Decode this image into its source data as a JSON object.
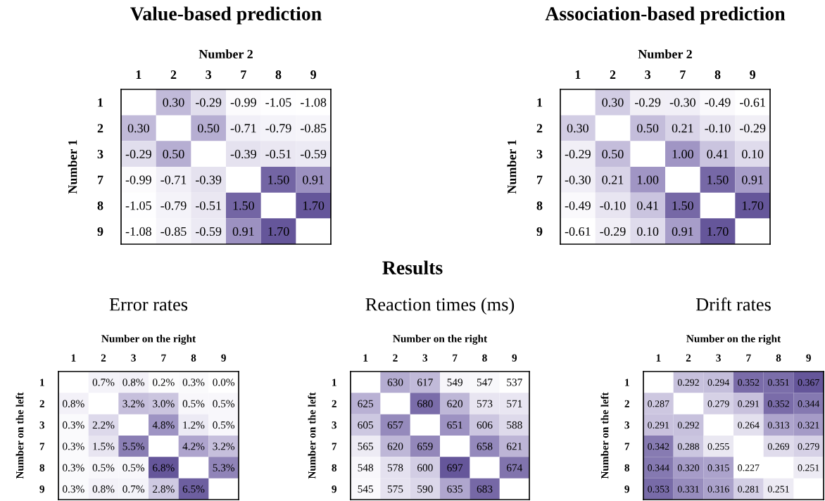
{
  "chart_data": [
    {
      "type": "heatmap",
      "title": "Value-based prediction",
      "xlabel": "Number 2",
      "ylabel": "Number 1",
      "categories": [
        "1",
        "2",
        "3",
        "7",
        "8",
        "9"
      ],
      "y_categories": [
        "1",
        "2",
        "3",
        "7",
        "8",
        "9"
      ],
      "cells": [
        [
          null,
          0.3,
          -0.29,
          -0.99,
          -1.05,
          -1.08
        ],
        [
          0.3,
          null,
          0.5,
          -0.71,
          -0.79,
          -0.85
        ],
        [
          -0.29,
          0.5,
          null,
          -0.39,
          -0.51,
          -0.59
        ],
        [
          -0.99,
          -0.71,
          -0.39,
          null,
          1.5,
          0.91
        ],
        [
          -1.05,
          -0.79,
          -0.51,
          1.5,
          null,
          1.7
        ],
        [
          -1.08,
          -0.85,
          -0.59,
          0.91,
          1.7,
          null
        ]
      ],
      "cell_labels": [
        [
          null,
          "0.30",
          "-0.29",
          "-0.99",
          "-1.05",
          "-1.08"
        ],
        [
          "0.30",
          null,
          "0.50",
          "-0.71",
          "-0.79",
          "-0.85"
        ],
        [
          "-0.29",
          "0.50",
          null,
          "-0.39",
          "-0.51",
          "-0.59"
        ],
        [
          "-0.99",
          "-0.71",
          "-0.39",
          null,
          "1.50",
          "0.91"
        ],
        [
          "-1.05",
          "-0.79",
          "-0.51",
          "1.50",
          null,
          "1.70"
        ],
        [
          "-1.08",
          "-0.85",
          "-0.59",
          "0.91",
          "1.70",
          null
        ]
      ]
    },
    {
      "type": "heatmap",
      "title": "Association-based prediction",
      "xlabel": "Number 2",
      "ylabel": "Number 1",
      "categories": [
        "1",
        "2",
        "3",
        "7",
        "8",
        "9"
      ],
      "y_categories": [
        "1",
        "2",
        "3",
        "7",
        "8",
        "9"
      ],
      "cells": [
        [
          null,
          0.3,
          -0.29,
          -0.3,
          -0.49,
          -0.61
        ],
        [
          0.3,
          null,
          0.5,
          0.21,
          -0.1,
          -0.29
        ],
        [
          -0.29,
          0.5,
          null,
          1.0,
          0.41,
          0.1
        ],
        [
          -0.3,
          0.21,
          1.0,
          null,
          1.5,
          0.91
        ],
        [
          -0.49,
          -0.1,
          0.41,
          1.5,
          null,
          1.7
        ],
        [
          -0.61,
          -0.29,
          0.1,
          0.91,
          1.7,
          null
        ]
      ],
      "cell_labels": [
        [
          null,
          "0.30",
          "-0.29",
          "-0.30",
          "-0.49",
          "-0.61"
        ],
        [
          "0.30",
          null,
          "0.50",
          "0.21",
          "-0.10",
          "-0.29"
        ],
        [
          "-0.29",
          "0.50",
          null,
          "1.00",
          "0.41",
          "0.10"
        ],
        [
          "-0.30",
          "0.21",
          "1.00",
          null,
          "1.50",
          "0.91"
        ],
        [
          "-0.49",
          "-0.10",
          "0.41",
          "1.50",
          null,
          "1.70"
        ],
        [
          "-0.61",
          "-0.29",
          "0.10",
          "0.91",
          "1.70",
          null
        ]
      ]
    },
    {
      "type": "heatmap",
      "title": "Error rates",
      "xlabel": "Number on the right",
      "ylabel": "Number on the left",
      "categories": [
        "1",
        "2",
        "3",
        "7",
        "8",
        "9"
      ],
      "y_categories": [
        "1",
        "2",
        "3",
        "7",
        "8",
        "9"
      ],
      "cells": [
        [
          null,
          0.7,
          0.8,
          0.2,
          0.3,
          0.0
        ],
        [
          0.8,
          null,
          3.2,
          3.0,
          0.5,
          0.5
        ],
        [
          0.3,
          2.2,
          null,
          4.8,
          1.2,
          0.5
        ],
        [
          0.3,
          1.5,
          5.5,
          null,
          4.2,
          3.2
        ],
        [
          0.3,
          0.5,
          0.5,
          6.8,
          null,
          5.3
        ],
        [
          0.3,
          0.8,
          0.7,
          2.8,
          6.5,
          null
        ]
      ],
      "cell_labels": [
        [
          null,
          "0.7%",
          "0.8%",
          "0.2%",
          "0.3%",
          "0.0%"
        ],
        [
          "0.8%",
          null,
          "3.2%",
          "3.0%",
          "0.5%",
          "0.5%"
        ],
        [
          "0.3%",
          "2.2%",
          null,
          "4.8%",
          "1.2%",
          "0.5%"
        ],
        [
          "0.3%",
          "1.5%",
          "5.5%",
          null,
          "4.2%",
          "3.2%"
        ],
        [
          "0.3%",
          "0.5%",
          "0.5%",
          "6.8%",
          null,
          "5.3%"
        ],
        [
          "0.3%",
          "0.8%",
          "0.7%",
          "2.8%",
          "6.5%",
          null
        ]
      ]
    },
    {
      "type": "heatmap",
      "title": "Reaction times (ms)",
      "xlabel": "Number on the right",
      "ylabel": "Number on the left",
      "annotations": [
        "Results"
      ],
      "categories": [
        "1",
        "2",
        "3",
        "7",
        "8",
        "9"
      ],
      "y_categories": [
        "1",
        "2",
        "3",
        "7",
        "8",
        "9"
      ],
      "cells": [
        [
          null,
          630,
          617,
          549,
          547,
          537
        ],
        [
          625,
          null,
          680,
          620,
          573,
          571
        ],
        [
          605,
          657,
          null,
          651,
          606,
          588
        ],
        [
          565,
          620,
          659,
          null,
          658,
          621
        ],
        [
          548,
          578,
          600,
          697,
          null,
          674
        ],
        [
          545,
          575,
          590,
          635,
          683,
          null
        ]
      ],
      "data_labels": true
    },
    {
      "type": "heatmap",
      "title": "Drift rates",
      "xlabel": "Number on the right",
      "ylabel": "Number on the left",
      "categories": [
        "1",
        "2",
        "3",
        "7",
        "8",
        "9"
      ],
      "y_categories": [
        "1",
        "2",
        "3",
        "7",
        "8",
        "9"
      ],
      "cells": [
        [
          null,
          0.292,
          0.294,
          0.352,
          0.351,
          0.367
        ],
        [
          0.287,
          null,
          0.279,
          0.291,
          0.352,
          0.344
        ],
        [
          0.291,
          0.292,
          null,
          0.264,
          0.313,
          0.321
        ],
        [
          0.342,
          0.288,
          0.255,
          null,
          0.269,
          0.279
        ],
        [
          0.344,
          0.32,
          0.315,
          0.227,
          null,
          0.251
        ],
        [
          0.353,
          0.331,
          0.316,
          0.281,
          0.251,
          null
        ]
      ],
      "cell_labels": [
        [
          null,
          "0.292",
          "0.294",
          "0.352",
          "0.351",
          "0.367"
        ],
        [
          "0.287",
          null,
          "0.279",
          "0.291",
          "0.352",
          "0.344"
        ],
        [
          "0.291",
          "0.292",
          null,
          "0.264",
          "0.313",
          "0.321"
        ],
        [
          "0.342",
          "0.288",
          "0.255",
          null,
          "0.269",
          "0.279"
        ],
        [
          "0.344",
          "0.320",
          "0.315",
          "0.227",
          null,
          "0.251"
        ],
        [
          "0.353",
          "0.331",
          "0.316",
          "0.281",
          "0.251",
          null
        ]
      ]
    }
  ]
}
